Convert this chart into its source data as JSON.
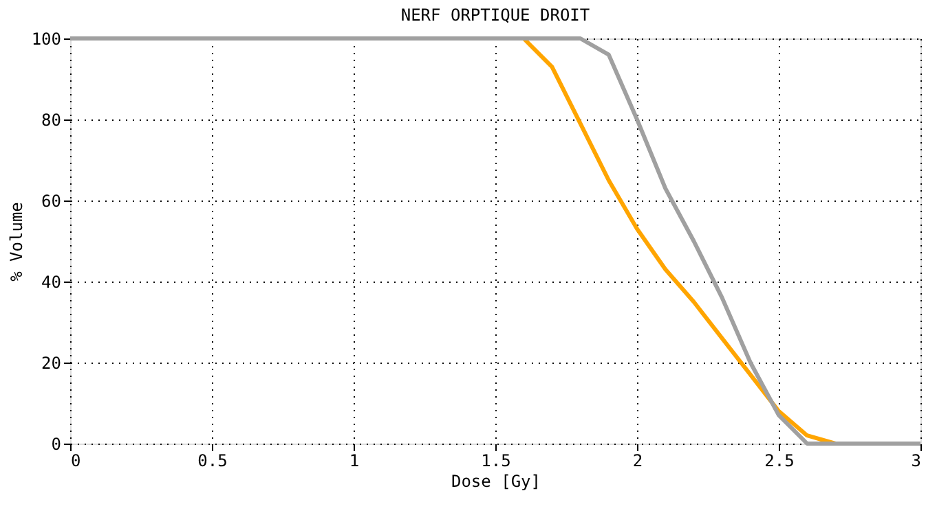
{
  "chart_data": {
    "type": "line",
    "title": "NERF ORPTIQUE DROIT",
    "xlabel": "Dose [Gy]",
    "ylabel": "% Volume",
    "series": [
      {
        "color": "#ffa500",
        "x": [
          0,
          1.6,
          1.7,
          1.8,
          1.9,
          2.0,
          2.1,
          2.2,
          2.3,
          2.4,
          2.5,
          2.6,
          2.7
        ],
        "values": [
          100,
          100,
          93,
          79,
          65,
          53,
          43,
          35,
          26,
          17,
          8,
          2,
          0
        ]
      },
      {
        "color": "#a0a0a0",
        "x": [
          0,
          1.8,
          1.9,
          2.0,
          2.1,
          2.2,
          2.3,
          2.4,
          2.5,
          2.6,
          3.0
        ],
        "values": [
          100,
          100,
          96,
          80,
          63,
          50,
          36,
          20,
          7,
          0,
          0
        ]
      }
    ],
    "xlim": [
      0,
      3
    ],
    "xticks": [
      0,
      0.5,
      1,
      1.5,
      2,
      2.5,
      3
    ],
    "ylim": [
      0,
      100
    ],
    "yticks": [
      0,
      20,
      40,
      60,
      80,
      100
    ],
    "grid": true,
    "marker": "none",
    "line_style": "solid"
  }
}
